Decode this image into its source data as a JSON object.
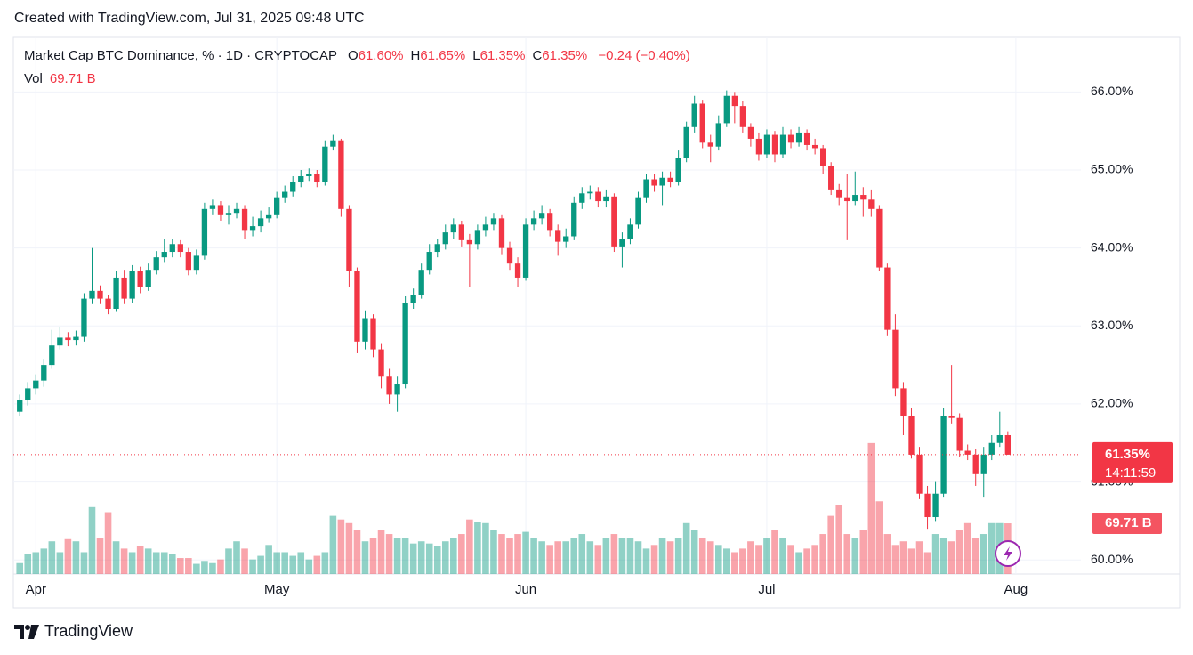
{
  "header": {
    "created": "Created with TradingView.com, Jul 31, 2025 09:48 UTC"
  },
  "chart_data": {
    "type": "candlestick",
    "title": "Market Cap BTC Dominance, % · 1D · CRYPTOCAP",
    "legend": [
      {
        "key": "O",
        "value": "61.60%"
      },
      {
        "key": "H",
        "value": "61.65%"
      },
      {
        "key": "L",
        "value": "61.35%"
      },
      {
        "key": "C",
        "value": "61.35%"
      }
    ],
    "change": "−0.24 (−0.40%)",
    "volume_label": "Vol",
    "volume_value": "69.71 B",
    "open": [
      61.9,
      62.05,
      62.2,
      62.3,
      62.5,
      62.75,
      62.85,
      62.82,
      62.86,
      63.35,
      63.45,
      63.35,
      63.22,
      63.62,
      63.35,
      63.7,
      63.5,
      63.72,
      63.88,
      63.95,
      64.05,
      63.95,
      63.72,
      63.9,
      64.5,
      64.55,
      64.42,
      64.45,
      64.5,
      64.22,
      64.28,
      64.38,
      64.42,
      64.65,
      64.72,
      64.85,
      64.92,
      64.95,
      64.85,
      65.3,
      65.38,
      64.5,
      63.7,
      62.8,
      63.1,
      62.7,
      62.35,
      62.12,
      62.25,
      63.3,
      63.4,
      63.72,
      63.95,
      64.05,
      64.2,
      64.3,
      64.1,
      64.05,
      64.22,
      64.3,
      64.38,
      64.0,
      63.8,
      63.62,
      64.3,
      64.38,
      64.45,
      64.22,
      64.08,
      64.15,
      64.58,
      64.7,
      64.72,
      64.6,
      64.66,
      64.02,
      64.12,
      64.3,
      64.65,
      64.88,
      64.8,
      64.9,
      64.85,
      65.15,
      65.55,
      65.85,
      65.35,
      65.3,
      65.6,
      65.95,
      65.82,
      65.55,
      65.4,
      65.2,
      65.45,
      65.2,
      65.45,
      65.35,
      65.48,
      65.32,
      65.28,
      65.05,
      64.75,
      64.65,
      64.6,
      64.68,
      64.62,
      64.5,
      63.75,
      62.95,
      62.2,
      61.85,
      61.35,
      60.85,
      60.55,
      60.85,
      61.85,
      61.82,
      61.4,
      61.35,
      61.1,
      61.35,
      61.5,
      61.6
    ],
    "high": [
      62.12,
      62.28,
      62.38,
      62.58,
      62.95,
      62.98,
      62.92,
      62.94,
      63.42,
      64.0,
      63.52,
      63.4,
      63.7,
      63.72,
      63.78,
      63.76,
      63.8,
      63.96,
      64.12,
      64.12,
      64.1,
      64.0,
      63.98,
      64.58,
      64.62,
      64.6,
      64.55,
      64.58,
      64.55,
      64.4,
      64.48,
      64.52,
      64.72,
      64.8,
      64.92,
      65.0,
      65.02,
      65.0,
      65.38,
      65.45,
      65.4,
      64.55,
      63.75,
      63.2,
      63.15,
      62.78,
      62.45,
      62.35,
      63.38,
      63.48,
      63.8,
      64.05,
      64.12,
      64.3,
      64.38,
      64.35,
      64.18,
      64.3,
      64.4,
      64.45,
      64.42,
      64.08,
      63.88,
      64.38,
      64.48,
      64.55,
      64.5,
      64.3,
      64.25,
      64.66,
      64.78,
      64.8,
      64.78,
      64.75,
      64.7,
      64.2,
      64.38,
      64.72,
      64.95,
      64.95,
      64.98,
      64.98,
      65.25,
      65.62,
      65.95,
      65.9,
      65.45,
      65.7,
      66.02,
      66.0,
      65.88,
      65.6,
      65.48,
      65.52,
      65.5,
      65.55,
      65.52,
      65.55,
      65.52,
      65.4,
      65.32,
      65.1,
      64.82,
      64.95,
      64.98,
      64.78,
      64.75,
      64.55,
      63.8,
      63.15,
      62.28,
      61.95,
      61.45,
      60.95,
      61.0,
      61.95,
      62.5,
      61.88,
      61.48,
      61.42,
      61.45,
      61.6,
      61.9,
      61.65
    ],
    "low": [
      61.85,
      61.98,
      62.12,
      62.22,
      62.45,
      62.7,
      62.74,
      62.75,
      62.8,
      63.28,
      63.28,
      63.15,
      63.18,
      63.28,
      63.3,
      63.42,
      63.45,
      63.66,
      63.82,
      63.88,
      63.88,
      63.65,
      63.66,
      63.85,
      64.42,
      64.35,
      64.3,
      64.38,
      64.12,
      64.15,
      64.2,
      64.32,
      64.38,
      64.58,
      64.66,
      64.78,
      64.86,
      64.78,
      64.8,
      65.25,
      64.4,
      63.5,
      62.65,
      62.7,
      62.6,
      62.2,
      62.0,
      61.9,
      62.2,
      63.22,
      63.35,
      63.66,
      63.88,
      63.98,
      64.12,
      64.02,
      63.5,
      63.98,
      64.15,
      64.22,
      63.92,
      63.72,
      63.5,
      63.58,
      64.22,
      64.3,
      64.15,
      63.9,
      64.0,
      64.1,
      64.5,
      64.62,
      64.52,
      64.52,
      63.95,
      63.75,
      64.05,
      64.25,
      64.58,
      64.72,
      64.55,
      64.78,
      64.8,
      65.1,
      65.48,
      65.28,
      65.1,
      65.25,
      65.55,
      65.6,
      65.48,
      65.3,
      65.12,
      65.15,
      65.1,
      65.15,
      65.28,
      65.3,
      65.25,
      65.2,
      64.95,
      64.68,
      64.55,
      64.1,
      64.55,
      64.4,
      64.4,
      63.7,
      62.88,
      62.1,
      61.6,
      61.3,
      60.78,
      60.4,
      60.5,
      60.8,
      61.75,
      61.32,
      61.28,
      60.95,
      60.8,
      61.28,
      61.45,
      61.35
    ],
    "close": [
      62.05,
      62.2,
      62.3,
      62.5,
      62.75,
      62.85,
      62.82,
      62.86,
      63.35,
      63.45,
      63.35,
      63.22,
      63.62,
      63.35,
      63.7,
      63.5,
      63.72,
      63.88,
      63.95,
      64.05,
      63.95,
      63.72,
      63.9,
      64.5,
      64.55,
      64.42,
      64.45,
      64.5,
      64.22,
      64.28,
      64.38,
      64.42,
      64.65,
      64.72,
      64.85,
      64.92,
      64.95,
      64.85,
      65.3,
      65.38,
      64.5,
      63.7,
      62.8,
      63.1,
      62.7,
      62.35,
      62.12,
      62.25,
      63.3,
      63.4,
      63.72,
      63.95,
      64.05,
      64.2,
      64.3,
      64.1,
      64.05,
      64.22,
      64.3,
      64.38,
      64.0,
      63.8,
      63.62,
      64.3,
      64.38,
      64.45,
      64.22,
      64.08,
      64.15,
      64.58,
      64.7,
      64.72,
      64.6,
      64.66,
      64.02,
      64.12,
      64.3,
      64.65,
      64.88,
      64.8,
      64.9,
      64.85,
      65.15,
      65.55,
      65.85,
      65.35,
      65.3,
      65.6,
      65.95,
      65.82,
      65.55,
      65.4,
      65.2,
      65.45,
      65.2,
      65.45,
      65.35,
      65.48,
      65.32,
      65.28,
      65.05,
      64.75,
      64.65,
      64.6,
      64.68,
      64.62,
      64.5,
      63.75,
      62.95,
      62.2,
      61.85,
      61.35,
      60.85,
      60.55,
      60.85,
      61.85,
      61.82,
      61.4,
      61.35,
      61.1,
      61.35,
      61.5,
      61.6,
      61.35
    ],
    "volume": [
      15,
      28,
      30,
      35,
      45,
      30,
      48,
      45,
      30,
      92,
      50,
      85,
      45,
      35,
      30,
      38,
      35,
      30,
      30,
      28,
      22,
      22,
      14,
      18,
      15,
      20,
      35,
      45,
      35,
      20,
      25,
      40,
      30,
      30,
      25,
      30,
      20,
      25,
      30,
      80,
      75,
      70,
      60,
      45,
      50,
      60,
      55,
      50,
      50,
      42,
      45,
      42,
      38,
      45,
      50,
      55,
      75,
      72,
      70,
      60,
      55,
      50,
      55,
      58,
      50,
      45,
      40,
      45,
      45,
      50,
      55,
      45,
      40,
      50,
      55,
      50,
      50,
      45,
      35,
      40,
      50,
      45,
      50,
      70,
      60,
      50,
      45,
      40,
      35,
      30,
      35,
      45,
      40,
      50,
      60,
      50,
      40,
      30,
      35,
      40,
      55,
      80,
      95,
      55,
      50,
      60,
      180,
      100,
      55,
      40,
      45,
      35,
      45,
      30,
      55,
      50,
      45,
      60,
      70,
      50,
      55,
      70,
      70,
      69.71
    ],
    "up_color": "#089981",
    "down_color": "#f23645",
    "xlim": [
      -0.8,
      132.1
    ],
    "xticks": [
      {
        "value": 2,
        "label": "Apr"
      },
      {
        "value": 32,
        "label": "May"
      },
      {
        "value": 63,
        "label": "Jun"
      },
      {
        "value": 93,
        "label": "Jul"
      },
      {
        "value": 124,
        "label": "Aug"
      }
    ],
    "ylim": [
      59.82,
      66.7
    ],
    "yticks": [
      {
        "value": 60,
        "label": "60.00%"
      },
      {
        "value": 61,
        "label": "61.00%"
      },
      {
        "value": 62,
        "label": "62.00%"
      },
      {
        "value": 63,
        "label": "63.00%"
      },
      {
        "value": 64,
        "label": "64.00%"
      },
      {
        "value": 65,
        "label": "65.00%"
      },
      {
        "value": 66,
        "label": "66.00%"
      }
    ],
    "grid": true,
    "last_price_label": "61.35%",
    "countdown": "14:11:59",
    "last_volume_label": "69.71 B"
  },
  "footer": {
    "brand": "TradingView"
  }
}
